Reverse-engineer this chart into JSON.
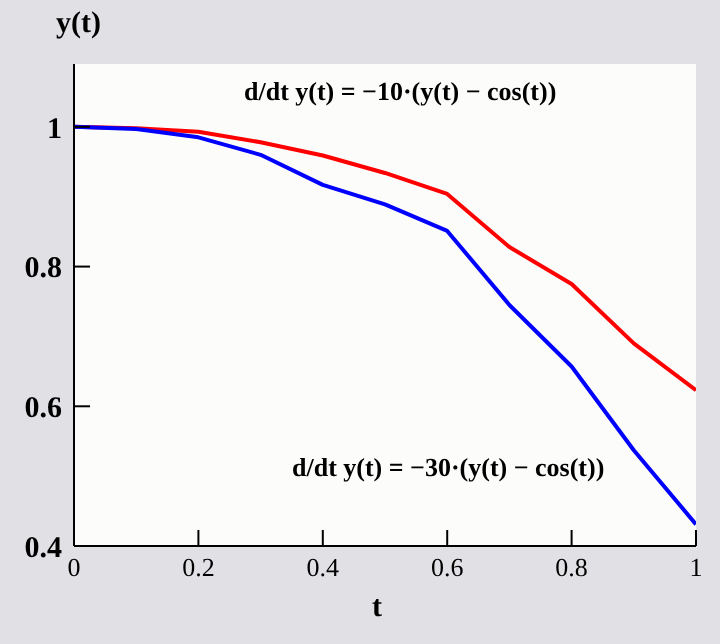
{
  "chart_data": {
    "type": "line",
    "xlabel": "t",
    "ylabel": "y(t)",
    "x": [
      0,
      0.1,
      0.2,
      0.3,
      0.4,
      0.5,
      0.6,
      0.7,
      0.8,
      0.9,
      1
    ],
    "series": [
      {
        "name": "d/dt y(t) = −10·(y(t) − cos(t))",
        "color": "#ff0000",
        "values": [
          1,
          0.998,
          0.993,
          0.978,
          0.959,
          0.934,
          0.904,
          0.828,
          0.775,
          0.69,
          0.623
        ]
      },
      {
        "name": "d/dt y(t) = −30·(y(t) − cos(t))",
        "color": "#0000ff",
        "values": [
          1,
          0.997,
          0.985,
          0.96,
          0.917,
          0.889,
          0.851,
          0.745,
          0.657,
          0.537,
          0.431
        ]
      }
    ],
    "xlim": [
      0,
      1
    ],
    "xticks": [
      0,
      0.2,
      0.4,
      0.6,
      0.8,
      1
    ],
    "ylim": [
      0.4,
      1.09
    ],
    "yticks": [
      0.4,
      0.6,
      0.8,
      1
    ],
    "marker": "none",
    "line_style": "solid"
  }
}
